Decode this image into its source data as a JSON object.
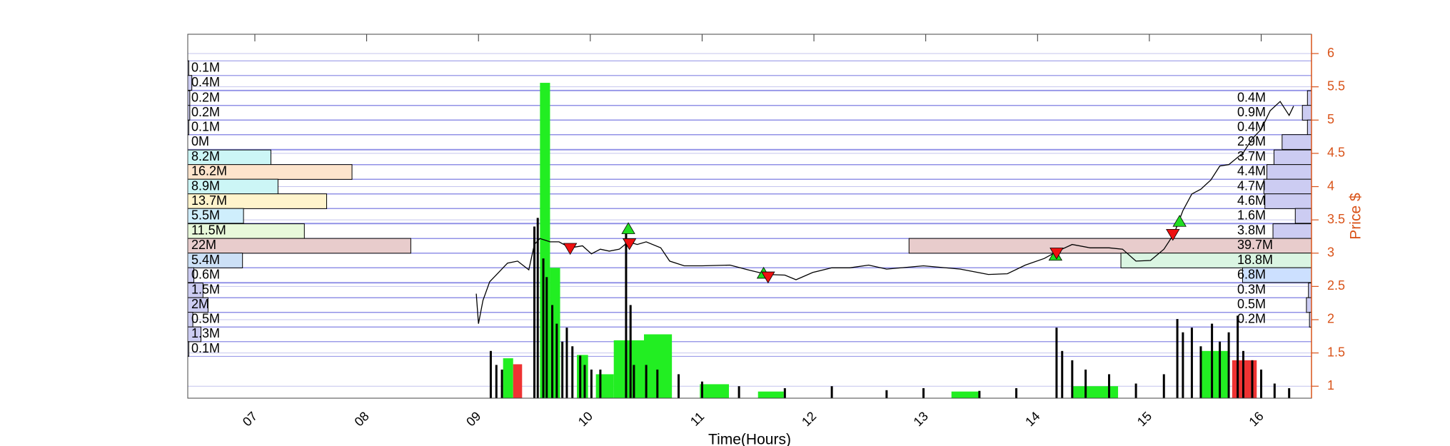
{
  "chart_data": {
    "type": "line",
    "xlabel": "Time(Hours)",
    "ylabel": "Price $",
    "xlim": [
      6.4,
      16.45
    ],
    "xticks": [
      {
        "value": 7,
        "label": "07"
      },
      {
        "value": 8,
        "label": "08"
      },
      {
        "value": 9,
        "label": "09"
      },
      10,
      11,
      12,
      13,
      14,
      15,
      16
    ],
    "ylim": [
      0.82,
      6.29
    ],
    "yticks": [
      1,
      1.5,
      2,
      2.5,
      3,
      3.5,
      4,
      4.5,
      5,
      5.5,
      6
    ],
    "y_axis_color": "#d95319",
    "grid": true,
    "grid_color": "#c4c4ee",
    "price": {
      "color": "#000000",
      "x": [
        8.98,
        9.0,
        9.04,
        9.1,
        9.18,
        9.26,
        9.35,
        9.45,
        9.5,
        9.55,
        9.64,
        9.72,
        9.82,
        9.93,
        10.01,
        10.09,
        10.17,
        10.26,
        10.34,
        10.42,
        10.5,
        10.63,
        10.71,
        10.84,
        11.0,
        11.25,
        11.41,
        11.58,
        11.74,
        11.84,
        11.99,
        12.16,
        12.32,
        12.49,
        12.65,
        12.98,
        13.31,
        13.56,
        13.73,
        13.89,
        14.06,
        14.18,
        14.31,
        14.47,
        14.64,
        14.76,
        14.88,
        15.01,
        15.13,
        15.22,
        15.3,
        15.38,
        15.46,
        15.55,
        15.63,
        15.71,
        15.84,
        15.92,
        16.0,
        16.08,
        16.17,
        16.25,
        16.29
      ],
      "values": [
        2.39,
        1.94,
        2.29,
        2.57,
        2.71,
        2.85,
        2.88,
        2.75,
        3.13,
        3.22,
        3.17,
        3.17,
        3.08,
        3.11,
        2.99,
        3.06,
        3.03,
        3.06,
        3.17,
        3.13,
        3.17,
        3.08,
        2.88,
        2.81,
        2.81,
        2.82,
        2.75,
        2.68,
        2.67,
        2.6,
        2.71,
        2.78,
        2.78,
        2.82,
        2.76,
        2.81,
        2.76,
        2.68,
        2.69,
        2.82,
        2.92,
        3.03,
        3.13,
        3.08,
        3.08,
        3.06,
        2.88,
        2.89,
        3.06,
        3.29,
        3.64,
        3.89,
        3.96,
        4.1,
        4.31,
        4.33,
        4.51,
        4.72,
        4.86,
        5.14,
        5.28,
        5.07,
        5.21
      ]
    },
    "buy_signals": {
      "color": "#22dd22",
      "x": [
        10.34,
        11.55,
        14.16,
        15.27
      ],
      "values": [
        3.36,
        2.69,
        2.96,
        3.47
      ]
    },
    "sell_signals": {
      "color": "#ee1111",
      "x": [
        9.82,
        10.35,
        11.59,
        14.17,
        15.21
      ],
      "values": [
        3.08,
        3.15,
        2.65,
        3.01,
        3.29
      ]
    },
    "volume_blocks": [
      {
        "color": "#22ee22",
        "x0": [
          9.55,
          9.64,
          9.22,
          9.88,
          10.05,
          10.21,
          10.48,
          10.98,
          11.5,
          13.23,
          14.31,
          15.46
        ],
        "x1": [
          9.64,
          9.73,
          9.31,
          9.98,
          10.21,
          10.48,
          10.73,
          11.24,
          11.73,
          13.48,
          14.72,
          15.71
        ],
        "values": [
          5.56,
          2.78,
          1.42,
          1.47,
          1.18,
          1.69,
          1.78,
          1.03,
          0.92,
          0.92,
          1.0,
          1.53
        ]
      },
      {
        "color": "#ee3333",
        "x0": [
          9.31,
          15.74
        ],
        "x1": [
          9.39,
          15.96
        ],
        "values": [
          1.33,
          1.39
        ]
      }
    ],
    "volume_spikes": {
      "color": "#000000",
      "x": [
        9.11,
        9.16,
        9.21,
        9.5,
        9.53,
        9.58,
        9.61,
        9.66,
        9.7,
        9.75,
        9.79,
        9.84,
        9.91,
        9.95,
        10.01,
        10.09,
        10.32,
        10.36,
        10.39,
        10.5,
        10.6,
        10.79,
        11.0,
        11.33,
        11.74,
        12.16,
        12.65,
        12.98,
        13.48,
        13.81,
        14.17,
        14.22,
        14.31,
        14.43,
        14.64,
        14.88,
        15.13,
        15.25,
        15.3,
        15.38,
        15.46,
        15.56,
        15.63,
        15.71,
        15.79,
        15.84,
        15.92,
        16.0,
        16.12,
        16.25
      ],
      "values": [
        1.53,
        1.32,
        1.25,
        3.4,
        3.53,
        2.92,
        2.64,
        2.22,
        1.94,
        1.67,
        1.88,
        1.6,
        1.46,
        1.32,
        1.25,
        1.25,
        3.33,
        2.22,
        1.32,
        1.32,
        1.25,
        1.18,
        1.07,
        1.0,
        0.97,
        1.0,
        0.94,
        0.97,
        0.93,
        0.97,
        1.88,
        1.53,
        1.39,
        1.25,
        1.18,
        1.04,
        1.18,
        2.01,
        1.81,
        1.88,
        1.6,
        1.94,
        1.67,
        1.81,
        2.06,
        1.53,
        1.39,
        1.25,
        1.04,
        0.97
      ]
    },
    "profile_left": {
      "levels": [
        5.78,
        5.56,
        5.33,
        5.11,
        4.89,
        4.67,
        4.44,
        4.22,
        4.0,
        3.78,
        3.56,
        3.33,
        3.11,
        2.89,
        2.67,
        2.44,
        2.22,
        2.0,
        1.78,
        1.56
      ],
      "values": [
        0.1,
        0.4,
        0.2,
        0.2,
        0.1,
        0,
        8.2,
        16.2,
        8.9,
        13.7,
        5.5,
        11.5,
        22,
        5.4,
        0.6,
        1.5,
        2,
        0.5,
        1.3,
        0.1
      ],
      "value_labels": [
        "0.1M",
        "0.4M",
        "0.2M",
        "0.2M",
        "0.1M",
        "0M",
        "8.2M",
        "16.2M",
        "8.9M",
        "13.7M",
        "5.5M",
        "11.5M",
        "22M",
        "5.4M",
        "0.6M",
        "1.5M",
        "2M",
        "0.5M",
        "1.3M",
        "0.1M"
      ],
      "colors": [
        "#ccccf2",
        "#ccccf2",
        "#ccccf2",
        "#ccccf2",
        "#ccccf2",
        "#ccccf2",
        "#ccf6f6",
        "#fde4cc",
        "#ccf6f6",
        "#fff4cc",
        "#cfeefc",
        "#e8f9da",
        "#e8cccc",
        "#cce0f6",
        "#ccccf2",
        "#ccccf2",
        "#ccccf2",
        "#ccccf2",
        "#ccccf2",
        "#ccccf2"
      ]
    },
    "profile_right": {
      "levels": [
        5.33,
        5.11,
        4.89,
        4.67,
        4.44,
        4.22,
        4.0,
        3.78,
        3.56,
        3.33,
        3.11,
        2.89,
        2.67,
        2.44,
        2.22,
        2.0
      ],
      "values": [
        0.4,
        0.9,
        0.4,
        2.9,
        3.7,
        4.4,
        4.7,
        4.6,
        1.6,
        3.8,
        39.7,
        18.8,
        6.8,
        0.3,
        0.5,
        0.2
      ],
      "value_labels": [
        "0.4M",
        "0.9M",
        "0.4M",
        "2.9M",
        "3.7M",
        "4.4M",
        "4.7M",
        "4.6M",
        "1.6M",
        "3.8M",
        "39.7M",
        "18.8M",
        "6.8M",
        "0.3M",
        "0.5M",
        "0.2M"
      ],
      "colors": [
        "#ccccf2",
        "#ccccf2",
        "#ccccf2",
        "#ccccf2",
        "#ccccf2",
        "#ccccf2",
        "#ccccf2",
        "#ccccf2",
        "#ccccf2",
        "#ccccf2",
        "#e8cccc",
        "#daf5e2",
        "#cce0ff",
        "#ccccf2",
        "#ccccf2",
        "#ccccf2"
      ]
    }
  }
}
